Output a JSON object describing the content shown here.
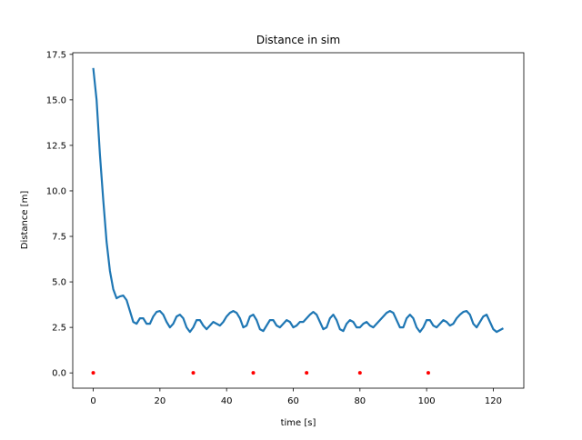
{
  "chart_data": {
    "type": "line",
    "title": "Distance in sim",
    "xlabel": "time [s]",
    "ylabel": "Distance [m]",
    "xlim": [
      -6.15,
      129.15
    ],
    "ylim": [
      -0.84,
      17.59
    ],
    "xticks": [
      0,
      20,
      40,
      60,
      80,
      100,
      120
    ],
    "yticks": [
      {
        "value": 0,
        "label": "0.0"
      },
      2.5,
      {
        "value": 5,
        "label": "5.0"
      },
      7.5,
      {
        "value": 10,
        "label": "10.0"
      },
      12.5,
      {
        "value": 15,
        "label": "15.0"
      },
      17.5
    ],
    "series": [
      {
        "type": "line",
        "color": "#1f77b4",
        "x": [
          0,
          1,
          2,
          3,
          4,
          5,
          6,
          7,
          8,
          9,
          10,
          11,
          12,
          13,
          14,
          15,
          16,
          17,
          18,
          19,
          20,
          21,
          22,
          23,
          24,
          25,
          26,
          27,
          28,
          29,
          30,
          31,
          32,
          33,
          34,
          35,
          36,
          37,
          38,
          39,
          40,
          41,
          42,
          43,
          44,
          45,
          46,
          47,
          48,
          49,
          50,
          51,
          52,
          53,
          54,
          55,
          56,
          57,
          58,
          59,
          60,
          61,
          62,
          63,
          64,
          65,
          66,
          67,
          68,
          69,
          70,
          71,
          72,
          73,
          74,
          75,
          76,
          77,
          78,
          79,
          80,
          81,
          82,
          83,
          84,
          85,
          86,
          87,
          88,
          89,
          90,
          91,
          92,
          93,
          94,
          95,
          96,
          97,
          98,
          99,
          100,
          101,
          102,
          103,
          104,
          105,
          106,
          107,
          108,
          109,
          110,
          111,
          112,
          113,
          114,
          115,
          116,
          117,
          118,
          119,
          120,
          121,
          122,
          123
        ],
        "values": [
          16.75,
          15.0,
          12.0,
          9.5,
          7.2,
          5.6,
          4.6,
          4.1,
          4.2,
          4.25,
          4.0,
          3.4,
          2.8,
          2.7,
          3.0,
          3.0,
          2.7,
          2.7,
          3.1,
          3.35,
          3.4,
          3.2,
          2.8,
          2.5,
          2.7,
          3.1,
          3.2,
          3.0,
          2.5,
          2.25,
          2.5,
          2.9,
          2.9,
          2.6,
          2.4,
          2.6,
          2.8,
          2.7,
          2.6,
          2.8,
          3.1,
          3.3,
          3.4,
          3.3,
          3.0,
          2.5,
          2.6,
          3.1,
          3.2,
          2.9,
          2.4,
          2.3,
          2.6,
          2.9,
          2.9,
          2.6,
          2.5,
          2.7,
          2.9,
          2.8,
          2.5,
          2.6,
          2.8,
          2.8,
          3.0,
          3.2,
          3.35,
          3.2,
          2.8,
          2.4,
          2.5,
          3.0,
          3.2,
          2.9,
          2.4,
          2.3,
          2.7,
          2.9,
          2.8,
          2.5,
          2.5,
          2.7,
          2.8,
          2.6,
          2.5,
          2.7,
          2.9,
          3.1,
          3.3,
          3.4,
          3.3,
          2.9,
          2.5,
          2.5,
          3.0,
          3.2,
          3.0,
          2.5,
          2.25,
          2.5,
          2.9,
          2.9,
          2.6,
          2.5,
          2.7,
          2.9,
          2.8,
          2.6,
          2.7,
          3.0,
          3.2,
          3.35,
          3.4,
          3.2,
          2.7,
          2.5,
          2.8,
          3.1,
          3.2,
          2.8,
          2.4,
          2.25,
          2.35,
          2.45
        ]
      },
      {
        "type": "scatter",
        "color": "#ff0000",
        "x": [
          0,
          30,
          48,
          64,
          80,
          100.5
        ],
        "values": [
          0,
          0,
          0,
          0,
          0,
          0
        ]
      }
    ]
  }
}
